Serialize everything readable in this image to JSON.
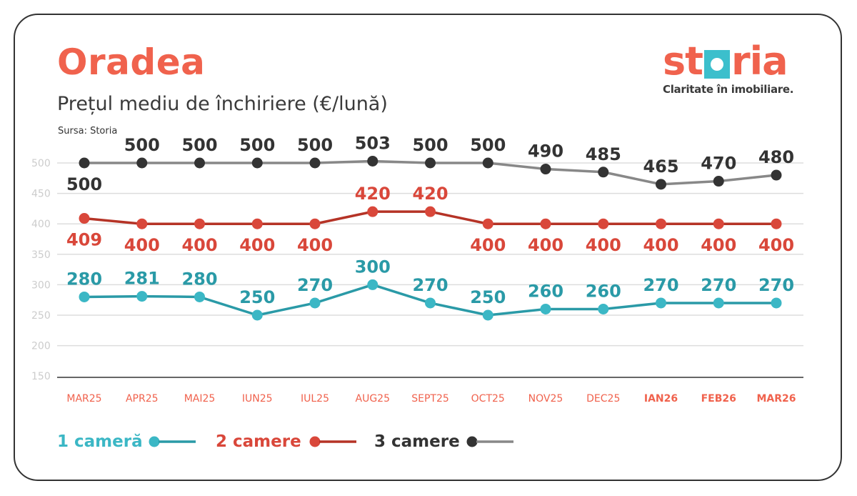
{
  "header": {
    "title": "Oradea",
    "subtitle": "Prețul mediu de închiriere (€/lună)",
    "source": "Sursa: Storia"
  },
  "logo": {
    "brand": "storia",
    "tagline": "Claritate în imobiliare."
  },
  "colors": {
    "s1": "#2a9aa7",
    "s1dot": "#3bb7c5",
    "s2": "#b53326",
    "s2dot": "#d9473a",
    "s3": "#888888",
    "s3dot": "#333333",
    "accent": "#f0624d",
    "grid": "#dddddd",
    "ytick": "#cccccc"
  },
  "chart_data": {
    "type": "line",
    "title": "Prețul mediu de închiriere (€/lună)",
    "xlabel": "",
    "ylabel": "",
    "ylim": [
      150,
      500
    ],
    "yticks": [
      150,
      200,
      250,
      300,
      350,
      400,
      450,
      500
    ],
    "grid": true,
    "legend_position": "bottom",
    "categories": [
      "MAR25",
      "APR25",
      "MAI25",
      "IUN25",
      "IUL25",
      "AUG25",
      "SEPT25",
      "OCT25",
      "NOV25",
      "DEC25",
      "IAN26",
      "FEB26",
      "MAR26"
    ],
    "bold_categories": [
      "IAN26",
      "FEB26",
      "MAR26"
    ],
    "series": [
      {
        "name": "1 cameră",
        "values": [
          280,
          281,
          280,
          250,
          270,
          300,
          270,
          250,
          260,
          260,
          270,
          270,
          270
        ]
      },
      {
        "name": "2 camere",
        "values": [
          409,
          400,
          400,
          400,
          400,
          420,
          420,
          400,
          400,
          400,
          400,
          400,
          400
        ]
      },
      {
        "name": "3 camere",
        "values": [
          500,
          500,
          500,
          500,
          500,
          503,
          500,
          500,
          490,
          485,
          465,
          470,
          480
        ]
      }
    ]
  }
}
